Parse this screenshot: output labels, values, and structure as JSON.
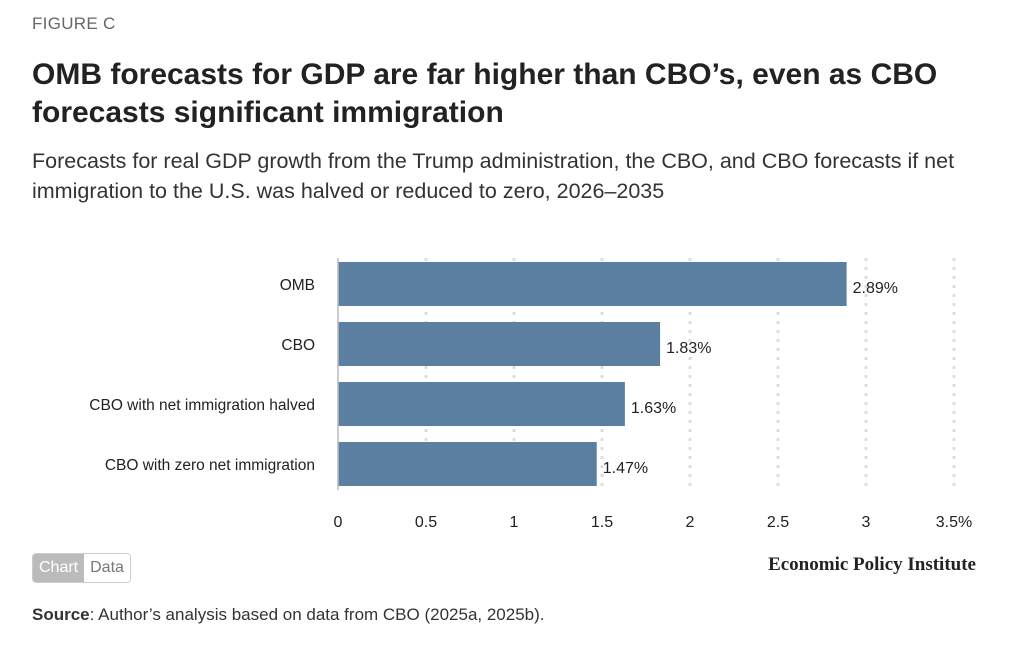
{
  "figure_label": "FIGURE C",
  "title": "OMB forecasts for GDP are far higher than CBO’s, even as CBO forecasts significant immigration",
  "subtitle": "Forecasts for real GDP growth from the Trump administration, the CBO, and CBO forecasts if net immigration to the U.S. was halved or reduced to zero, 2026–2035",
  "toggle": {
    "chart": "Chart",
    "data": "Data",
    "active": "Chart"
  },
  "logo": "Economic Policy Institute",
  "source": {
    "label": "Source",
    "text": ": Author’s analysis based on data from CBO (2025a, 2025b)."
  },
  "chart_data": {
    "type": "bar",
    "orientation": "horizontal",
    "categories": [
      "OMB",
      "CBO",
      "CBO with net immigration halved",
      "CBO with zero net immigration"
    ],
    "values": [
      2.89,
      1.83,
      1.63,
      1.47
    ],
    "data_labels": [
      "2.89%",
      "1.83%",
      "1.63%",
      "1.47%"
    ],
    "xlim": [
      0,
      3.5
    ],
    "xticks": [
      0,
      0.5,
      1,
      1.5,
      2,
      2.5,
      3,
      3.5
    ],
    "xtick_labels": [
      "0",
      "0.5",
      "1",
      "1.5",
      "2",
      "2.5",
      "3",
      "3.5%"
    ],
    "grid": "vertical dotted",
    "bar_color": "#5a7fa0"
  }
}
